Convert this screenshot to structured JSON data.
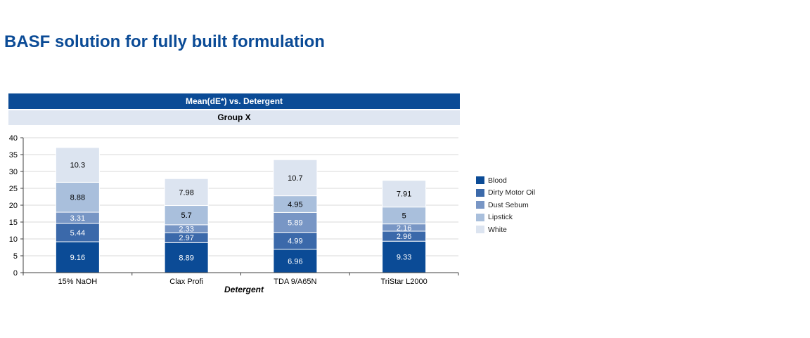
{
  "page": {
    "title": "BASF solution for fully built formulation"
  },
  "chart_data": {
    "type": "bar",
    "stacked": true,
    "title": "Mean(dE*) vs. Detergent",
    "subtitle": "Group X",
    "xlabel": "Detergent",
    "ylabel": "",
    "ylim": [
      0,
      40
    ],
    "yticks": [
      0,
      5,
      10,
      15,
      20,
      25,
      30,
      35,
      40
    ],
    "grid": true,
    "legend_position": "right",
    "categories": [
      "15% NaOH",
      "Clax Profi",
      "TDA 9/A65N",
      "TriStar L2000"
    ],
    "series": [
      {
        "name": "Blood",
        "color": "#0b4b96",
        "values": [
          9.16,
          8.89,
          6.96,
          9.33
        ],
        "labels": [
          "9.16",
          "8.89",
          "6.96",
          "9.33"
        ]
      },
      {
        "name": "Dirty Motor Oil",
        "color": "#3b69aa",
        "values": [
          5.44,
          2.97,
          4.99,
          2.96
        ],
        "labels": [
          "5.44",
          "2.97",
          "4.99",
          "2.96"
        ]
      },
      {
        "name": "Dust Sebum",
        "color": "#7896c5",
        "values": [
          3.31,
          2.33,
          5.89,
          2.16
        ],
        "labels": [
          "3.31",
          "2.33",
          "5.89",
          "2.16"
        ]
      },
      {
        "name": "Lipstick",
        "color": "#a9bfdc",
        "values": [
          8.88,
          5.7,
          4.95,
          5
        ],
        "labels": [
          "8.88",
          "5.7",
          "4.95",
          "5"
        ]
      },
      {
        "name": "White",
        "color": "#dce4f0",
        "values": [
          10.3,
          7.98,
          10.7,
          7.91
        ],
        "labels": [
          "10.3",
          "7.98",
          "10.7",
          "7.91"
        ]
      }
    ]
  }
}
